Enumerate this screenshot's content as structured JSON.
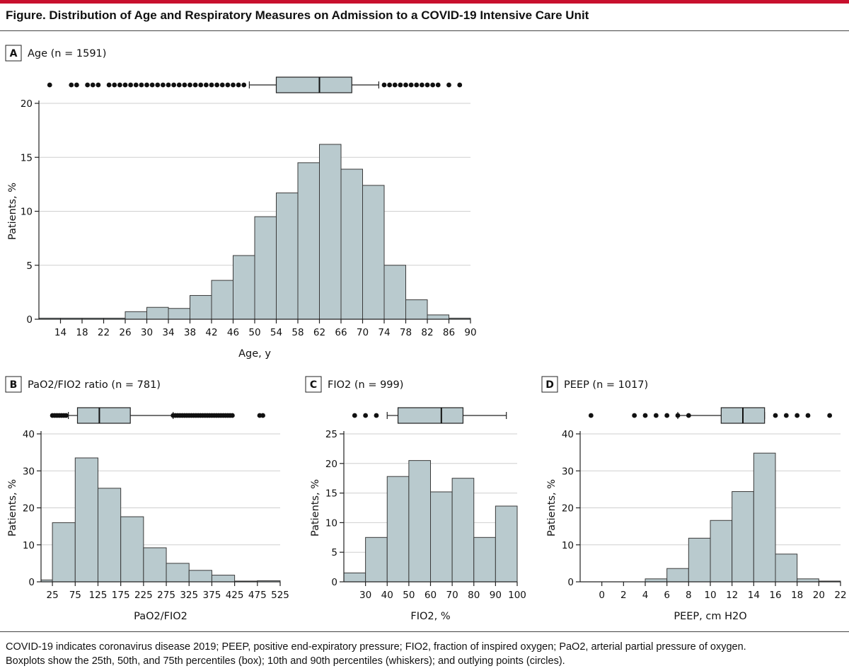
{
  "figure_title": "Figure. Distribution of Age and Respiratory Measures on Admission to a COVID-19 Intensive Care Unit",
  "footnote_line1": "COVID-19 indicates coronavirus disease 2019; PEEP, positive end-expiratory pressure; FIO2, fraction of inspired oxygen; PaO2, arterial partial pressure of oxygen.",
  "footnote_line2": "Boxplots show the 25th, 50th, and 75th percentiles (box); 10th and 90th percentiles (whiskers); and outlying points (circles).",
  "colors": {
    "bar_fill": "#b9cace",
    "accent_rule": "#c8102e"
  },
  "chart_data": [
    {
      "type": "bar",
      "panel": "A",
      "title": "Age (n = 1591)",
      "xlabel": "Age, y",
      "ylabel": "Patients, %",
      "bin_edges": [
        10,
        14,
        18,
        22,
        26,
        30,
        34,
        38,
        42,
        46,
        50,
        54,
        58,
        62,
        66,
        70,
        74,
        78,
        82,
        86,
        90
      ],
      "values": [
        0.1,
        0.1,
        0.1,
        0.1,
        0.7,
        1.1,
        1.0,
        2.2,
        3.6,
        5.9,
        9.5,
        11.7,
        14.5,
        16.2,
        13.9,
        12.4,
        5.0,
        1.8,
        0.4,
        0.1
      ],
      "xlim": [
        10,
        90
      ],
      "ylim": [
        0,
        20
      ],
      "yticks": [
        0,
        5,
        10,
        15,
        20
      ],
      "xticks": [
        14,
        18,
        22,
        26,
        30,
        34,
        38,
        42,
        46,
        50,
        54,
        58,
        62,
        66,
        70,
        74,
        78,
        82,
        86,
        90
      ],
      "boxplot": {
        "p10": 49,
        "q1": 54,
        "median": 62,
        "q3": 68,
        "p90": 73,
        "outliers": [
          12,
          16,
          17,
          19,
          20,
          21,
          23,
          24,
          25,
          26,
          27,
          28,
          29,
          30,
          31,
          32,
          33,
          34,
          35,
          36,
          37,
          38,
          39,
          40,
          41,
          42,
          43,
          44,
          45,
          46,
          47,
          48,
          74,
          75,
          76,
          77,
          78,
          79,
          80,
          81,
          82,
          83,
          84,
          86,
          88
        ]
      },
      "grid": true
    },
    {
      "type": "bar",
      "panel": "B",
      "title": "PaO2/FIO2 ratio (n = 781)",
      "xlabel": "PaO2/FIO2",
      "ylabel": "Patients, %",
      "bin_edges": [
        0,
        25,
        75,
        125,
        175,
        225,
        275,
        325,
        375,
        425,
        475,
        525
      ],
      "values": [
        0.5,
        16,
        33.5,
        25.3,
        17.6,
        9.2,
        5.0,
        3.1,
        1.8,
        0.2,
        0.3
      ],
      "xlim": [
        0,
        525
      ],
      "ylim": [
        0,
        40
      ],
      "yticks": [
        0,
        10,
        20,
        30,
        40
      ],
      "xticks": [
        25,
        75,
        125,
        175,
        225,
        275,
        325,
        375,
        425,
        475,
        525
      ],
      "boxplot": {
        "p10": 60,
        "q1": 80,
        "median": 128,
        "q3": 196,
        "p90": 290,
        "outliers": [
          25,
          30,
          35,
          40,
          45,
          50,
          55,
          290,
          295,
          300,
          305,
          310,
          315,
          320,
          325,
          330,
          335,
          340,
          345,
          350,
          355,
          360,
          365,
          370,
          375,
          380,
          385,
          390,
          395,
          400,
          405,
          410,
          415,
          420,
          480,
          487
        ]
      },
      "grid": true
    },
    {
      "type": "bar",
      "panel": "C",
      "title": "FIO2 (n = 999)",
      "xlabel": "FIO2, %",
      "ylabel": "Patients, %",
      "bin_edges": [
        20,
        30,
        40,
        50,
        60,
        70,
        80,
        90,
        100
      ],
      "values": [
        1.5,
        7.5,
        17.8,
        20.5,
        15.2,
        17.5,
        7.5,
        12.8
      ],
      "xlim": [
        20,
        100
      ],
      "ylim": [
        0,
        25
      ],
      "yticks": [
        0,
        5,
        10,
        15,
        20,
        25
      ],
      "xticks": [
        30,
        40,
        50,
        60,
        70,
        80,
        90,
        100
      ],
      "boxplot": {
        "p10": 40,
        "q1": 45,
        "median": 65,
        "q3": 75,
        "p90": 95,
        "outliers": [
          25,
          30,
          35
        ]
      },
      "grid": true
    },
    {
      "type": "bar",
      "panel": "D",
      "title": "PEEP (n = 1017)",
      "xlabel": "PEEP, cm H2O",
      "ylabel": "Patients, %",
      "bin_edges": [
        -2,
        0,
        2,
        4,
        6,
        8,
        10,
        12,
        14,
        16,
        18,
        20,
        22
      ],
      "values": [
        0,
        0,
        0,
        0.8,
        3.6,
        11.8,
        16.6,
        24.4,
        34.8,
        7.5,
        0.8,
        0.2
      ],
      "xlim": [
        -2,
        22
      ],
      "ylim": [
        0,
        40
      ],
      "yticks": [
        0,
        10,
        20,
        30,
        40
      ],
      "xticks": [
        0,
        2,
        4,
        6,
        8,
        10,
        12,
        14,
        16,
        18,
        20,
        22
      ],
      "boxplot": {
        "p10": 7,
        "q1": 11,
        "median": 13,
        "q3": 15,
        "p90": 15,
        "outliers": [
          -1,
          3,
          4,
          5,
          6,
          7,
          8,
          16,
          17,
          18,
          19,
          21
        ]
      },
      "grid": true
    }
  ]
}
